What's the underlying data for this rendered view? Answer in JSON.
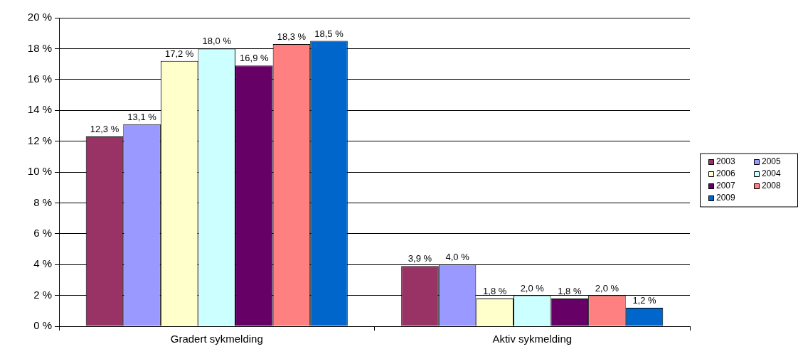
{
  "chart_data": {
    "type": "bar",
    "categories": [
      "Gradert sykmelding",
      "Aktiv sykmelding"
    ],
    "series": [
      {
        "name": "2003",
        "color": "#993366",
        "values": [
          12.3,
          3.9
        ],
        "value_labels": [
          "12,3 %",
          "3,9 %"
        ]
      },
      {
        "name": "2005",
        "color": "#9999ff",
        "values": [
          13.1,
          4.0
        ],
        "value_labels": [
          "13,1 %",
          "4,0 %"
        ]
      },
      {
        "name": "2006",
        "color": "#ffffcc",
        "values": [
          17.2,
          1.8
        ],
        "value_labels": [
          "17,2 %",
          "1,8 %"
        ]
      },
      {
        "name": "2004",
        "color": "#ccffff",
        "values": [
          18.0,
          2.0
        ],
        "value_labels": [
          "18,0 %",
          "2,0 %"
        ]
      },
      {
        "name": "2007",
        "color": "#660066",
        "values": [
          16.9,
          1.8
        ],
        "value_labels": [
          "16,9 %",
          "1,8 %"
        ]
      },
      {
        "name": "2008",
        "color": "#ff8080",
        "values": [
          18.3,
          2.0
        ],
        "value_labels": [
          "18,3 %",
          "2,0 %"
        ]
      },
      {
        "name": "2009",
        "color": "#0066cc",
        "values": [
          18.5,
          1.2
        ],
        "value_labels": [
          "18,5 %",
          "1,2 %"
        ]
      }
    ],
    "ylim": [
      0,
      20
    ],
    "yticks": [
      {
        "value": 0,
        "label": "0 %"
      },
      {
        "value": 2,
        "label": "2 %"
      },
      {
        "value": 4,
        "label": "4 %"
      },
      {
        "value": 6,
        "label": "6 %"
      },
      {
        "value": 8,
        "label": "8 %"
      },
      {
        "value": 10,
        "label": "10 %"
      },
      {
        "value": 12,
        "label": "12 %"
      },
      {
        "value": 14,
        "label": "14 %"
      },
      {
        "value": 16,
        "label": "16 %"
      },
      {
        "value": 18,
        "label": "18 %"
      },
      {
        "value": 20,
        "label": "20 %"
      }
    ],
    "grid": "y",
    "legend": "right"
  }
}
